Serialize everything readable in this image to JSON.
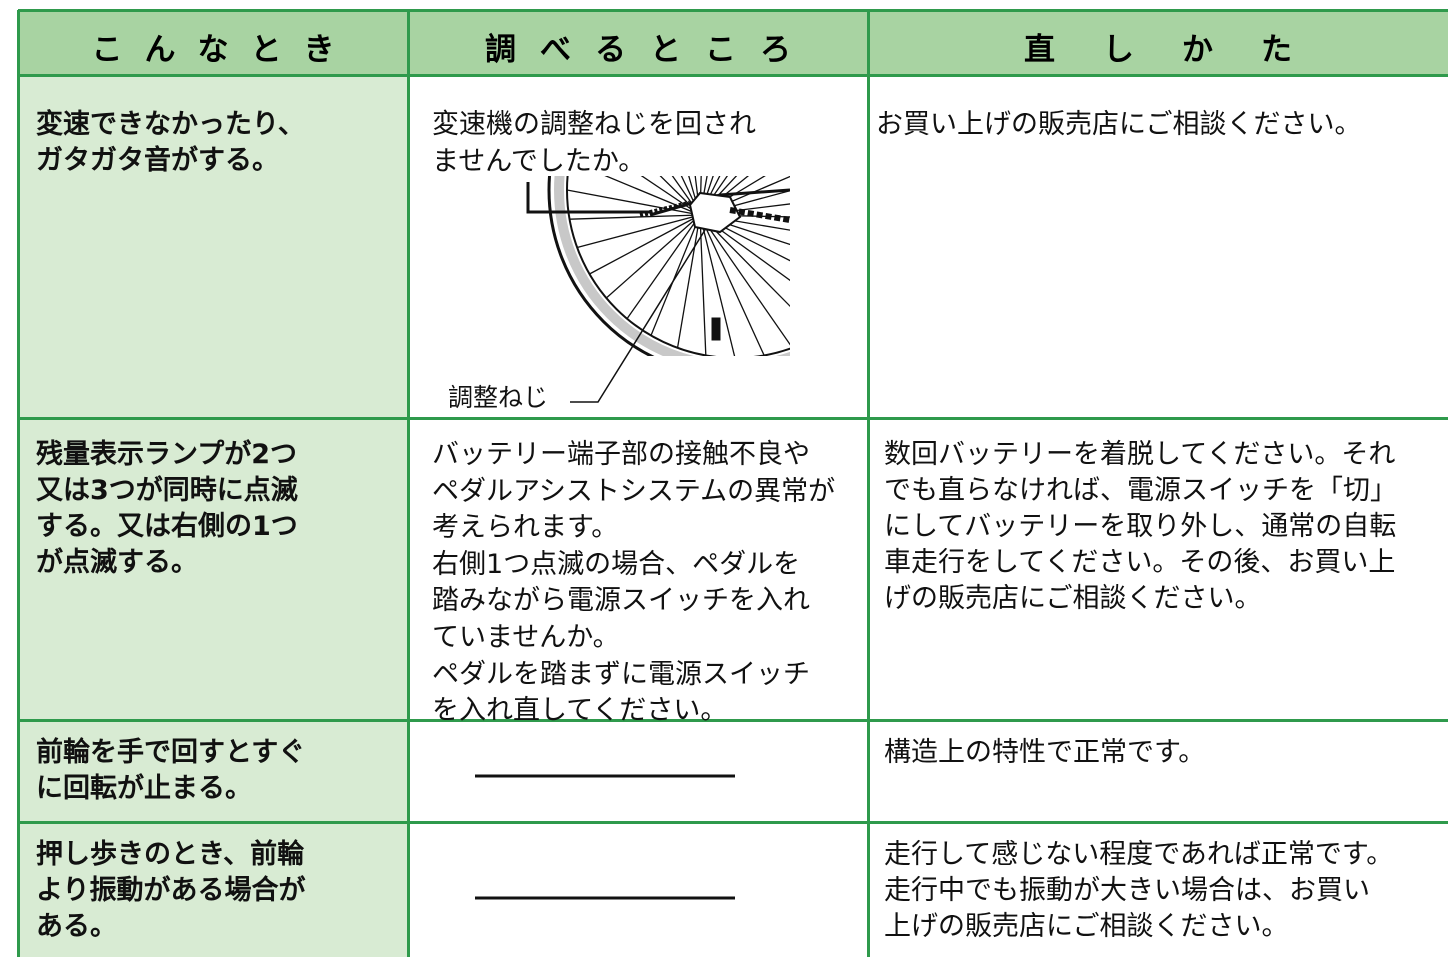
{
  "table": {
    "header": [
      "こんなとき",
      "調べるところ",
      "直しかた"
    ],
    "rows": [
      {
        "symptom": [
          "変速できなかったり、",
          "ガタガタ音がする。"
        ],
        "check": [
          "変速機の調整ねじを回され",
          "ませんでしたか。"
        ],
        "figure_label": "調整ねじ",
        "remedy": [
          "お買い上げの販売店にご相談ください。"
        ]
      },
      {
        "symptom": [
          "残量表示ランプが2つ",
          "又は3つが同時に点滅",
          "する。又は右側の1つ",
          "が点滅する。"
        ],
        "check": [
          "バッテリー端子部の接触不良や",
          "ペダルアシストシステムの異常が",
          "考えられます。",
          "右側1つ点滅の場合、ペダルを",
          "踏みながら電源スイッチを入れ",
          "ていませんか。",
          "ペダルを踏まずに電源スイッチ",
          "を入れ直してください。"
        ],
        "remedy": [
          "数回バッテリーを着脱してください。それ",
          "でも直らなければ、電源スイッチを「切」",
          "にしてバッテリーを取り外し、通常の自転",
          "車走行をしてください。その後、お買い上",
          "げの販売店にご相談ください。"
        ]
      },
      {
        "symptom": [
          "前輪を手で回すとすぐ",
          "に回転が止まる。"
        ],
        "remedy": [
          "構造上の特性で正常です。"
        ]
      },
      {
        "symptom": [
          "押し歩きのとき、前輪",
          "より振動がある場合が",
          "ある。"
        ],
        "remedy": [
          "走行して感じない程度であれば正常です。",
          "走行中でも振動が大きい場合は、お買い",
          "上げの販売店にご相談ください。"
        ]
      }
    ]
  }
}
